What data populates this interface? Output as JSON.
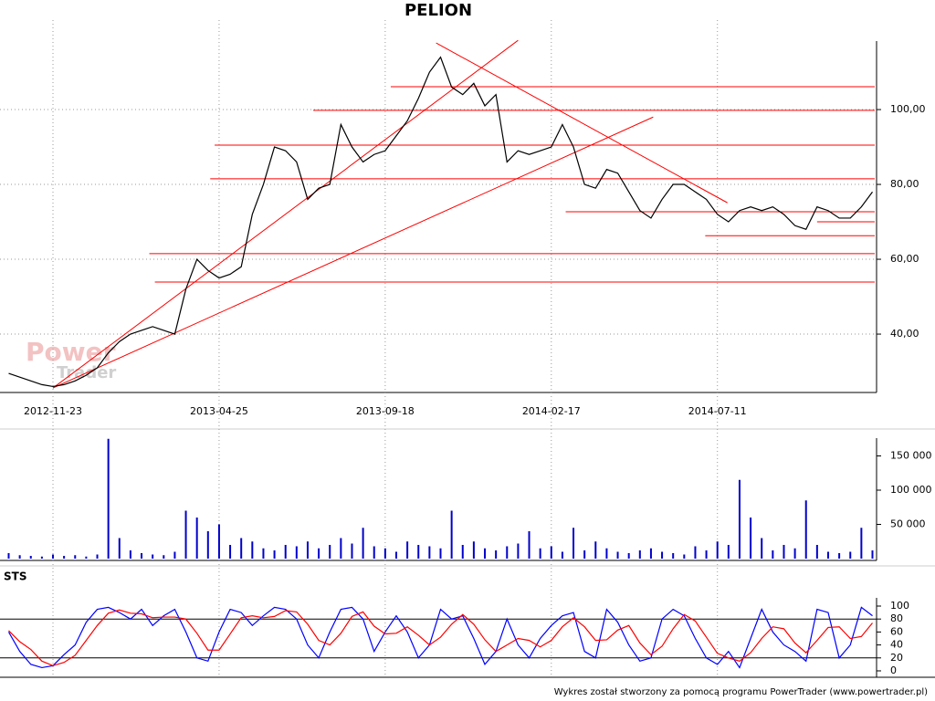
{
  "chart_data": [
    {
      "type": "line",
      "title": "PELION",
      "categories": [
        null,
        null,
        null,
        null,
        "2012-11-23",
        null,
        null,
        null,
        null,
        null,
        null,
        null,
        null,
        null,
        null,
        null,
        null,
        null,
        null,
        "2013-04-25",
        null,
        null,
        null,
        null,
        null,
        null,
        null,
        null,
        null,
        null,
        null,
        null,
        null,
        null,
        "2013-09-18",
        null,
        null,
        null,
        null,
        null,
        null,
        null,
        null,
        null,
        null,
        null,
        null,
        null,
        null,
        "2014-02-17",
        null,
        null,
        null,
        null,
        null,
        null,
        null,
        null,
        null,
        null,
        null,
        null,
        null,
        null,
        "2014-07-11",
        null,
        null,
        null,
        null,
        null,
        null,
        null,
        null,
        null,
        null,
        null,
        null,
        null,
        null
      ],
      "values": [
        29.5,
        28.5,
        27.5,
        26.5,
        26,
        26.5,
        27.5,
        29,
        31,
        35,
        38,
        40,
        41,
        42,
        41,
        40,
        52,
        60,
        57,
        55,
        56,
        58,
        72,
        80,
        90,
        89,
        86,
        76,
        79,
        80,
        96,
        90,
        86,
        88,
        89,
        93,
        97,
        103,
        110,
        114,
        106,
        104,
        107,
        101,
        104,
        86,
        89,
        88,
        89,
        90,
        96,
        90,
        80,
        79,
        84,
        83,
        78,
        73,
        71,
        76,
        80,
        80,
        78,
        76,
        72,
        70,
        73,
        74,
        73,
        74,
        72,
        69,
        68,
        74,
        73,
        71,
        71,
        74,
        78
      ],
      "color": "#000000",
      "ylim": [
        24.4,
        118.3
      ],
      "yticks": [
        {
          "value": 40,
          "label": "40,00"
        },
        {
          "value": 60,
          "label": "60,00"
        },
        {
          "value": 80,
          "label": "80,00"
        },
        {
          "value": 100,
          "label": "100,00"
        }
      ],
      "grid": true,
      "line_color": "#ff0000",
      "lines": [
        {
          "x": [
            34.5,
            78.2
          ],
          "y": [
            106.1,
            106.1
          ]
        },
        {
          "x": [
            27.5,
            78.2
          ],
          "y": [
            99.8,
            99.8
          ]
        },
        {
          "x": [
            18.6,
            78.2
          ],
          "y": [
            90.5,
            90.5
          ]
        },
        {
          "x": [
            18.2,
            78.2
          ],
          "y": [
            81.5,
            81.5
          ]
        },
        {
          "x": [
            50.3,
            78.2
          ],
          "y": [
            72.7,
            72.7
          ]
        },
        {
          "x": [
            73,
            78.2
          ],
          "y": [
            70,
            70
          ]
        },
        {
          "x": [
            62.9,
            78.2
          ],
          "y": [
            66.3,
            66.3
          ]
        },
        {
          "x": [
            12.7,
            78.2
          ],
          "y": [
            61.5,
            61.5
          ]
        },
        {
          "x": [
            13.2,
            78.2
          ],
          "y": [
            53.9,
            53.9
          ]
        },
        {
          "x": [
            4,
            46
          ],
          "y": [
            25.6,
            118.5
          ]
        },
        {
          "x": [
            4,
            58.2
          ],
          "y": [
            25.6,
            98
          ]
        },
        {
          "x": [
            38.6,
            64.9
          ],
          "y": [
            117.8,
            75.1
          ]
        }
      ]
    },
    {
      "type": "bar",
      "values": [
        8000,
        5000,
        4000,
        3000,
        6000,
        4000,
        5000,
        3000,
        6000,
        175000,
        30000,
        12000,
        8000,
        6000,
        5000,
        10000,
        70000,
        60000,
        40000,
        50000,
        20000,
        30000,
        25000,
        15000,
        12000,
        20000,
        18000,
        25000,
        15000,
        20000,
        30000,
        22000,
        45000,
        18000,
        15000,
        10000,
        25000,
        20000,
        18000,
        15000,
        70000,
        20000,
        25000,
        15000,
        12000,
        18000,
        22000,
        40000,
        15000,
        18000,
        10000,
        45000,
        12000,
        25000,
        15000,
        10000,
        8000,
        12000,
        15000,
        10000,
        8000,
        6000,
        18000,
        12000,
        25000,
        20000,
        115000,
        60000,
        30000,
        12000,
        20000,
        15000,
        85000,
        20000,
        10000,
        8000,
        10000,
        45000,
        12000
      ],
      "color": "#0000cc",
      "ylim": [
        0,
        176000
      ],
      "yticks": [
        {
          "value": 50000,
          "label": "50 000"
        },
        {
          "value": 100000,
          "label": "100 000"
        },
        {
          "value": 150000,
          "label": "150 000"
        }
      ]
    },
    {
      "type": "line",
      "title": "STS",
      "series": [
        {
          "color": "#0000ff",
          "values": [
            60,
            30,
            10,
            5,
            8,
            25,
            40,
            75,
            95,
            98,
            90,
            80,
            95,
            70,
            85,
            95,
            60,
            20,
            15,
            60,
            95,
            90,
            70,
            85,
            98,
            95,
            80,
            40,
            20,
            60,
            95,
            98,
            80,
            30,
            60,
            85,
            60,
            20,
            40,
            95,
            80,
            85,
            50,
            10,
            30,
            80,
            40,
            20,
            50,
            70,
            85,
            90,
            30,
            20,
            95,
            75,
            40,
            15,
            20,
            80,
            95,
            85,
            50,
            20,
            10,
            30,
            5,
            50,
            95,
            60,
            40,
            30,
            15,
            95,
            90,
            20,
            40,
            98,
            85
          ]
        },
        {
          "color": "#ff0000",
          "values": [
            62,
            45,
            33,
            15,
            8,
            13,
            24,
            47,
            70,
            89,
            94,
            89,
            88,
            82,
            83,
            83,
            80,
            58,
            32,
            32,
            57,
            82,
            85,
            82,
            84,
            93,
            91,
            72,
            47,
            40,
            58,
            84,
            91,
            69,
            57,
            58,
            68,
            55,
            40,
            52,
            72,
            87,
            72,
            48,
            30,
            40,
            50,
            47,
            37,
            47,
            68,
            82,
            68,
            47,
            48,
            63,
            70,
            43,
            25,
            38,
            65,
            87,
            77,
            52,
            27,
            20,
            15,
            28,
            50,
            68,
            65,
            43,
            28,
            47,
            67,
            68,
            50,
            53,
            74
          ]
        }
      ],
      "ylim": [
        -9.9,
        112.7
      ],
      "yticks": [
        0,
        20,
        40,
        60,
        80,
        100
      ],
      "levels": [
        20,
        80
      ]
    }
  ],
  "watermark": [
    "Power",
    "Trader"
  ],
  "footer": "Wykres został stworzony za pomocą programu PowerTrader (www.powertrader.pl)"
}
